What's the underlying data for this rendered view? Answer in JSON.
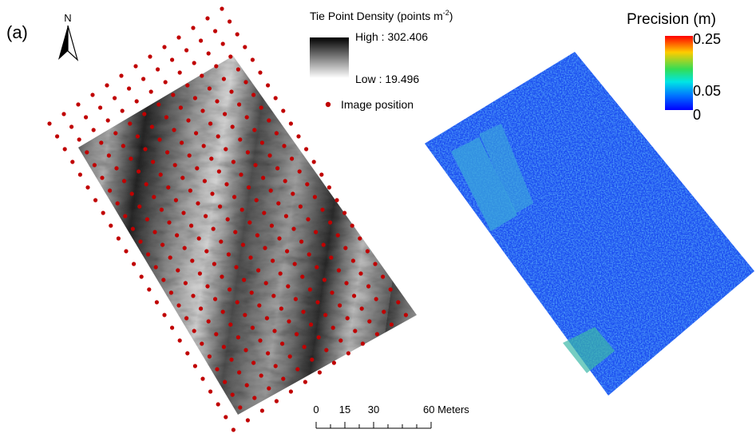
{
  "panel_label": "(a)",
  "north_arrow": {
    "label": "N"
  },
  "density_legend": {
    "title": "Tie Point Density (points m",
    "title_superscript": "-2",
    "title_end": ")",
    "high_label": "High : 302.406",
    "low_label": "Low : 19.496",
    "point_label": "Image position"
  },
  "precision_legend": {
    "title": "Precision (m)",
    "labels": [
      "0.25",
      "0.05",
      "0"
    ]
  },
  "scale_bar": {
    "labels": [
      "0",
      "15",
      "30",
      "60 Meters"
    ]
  }
}
